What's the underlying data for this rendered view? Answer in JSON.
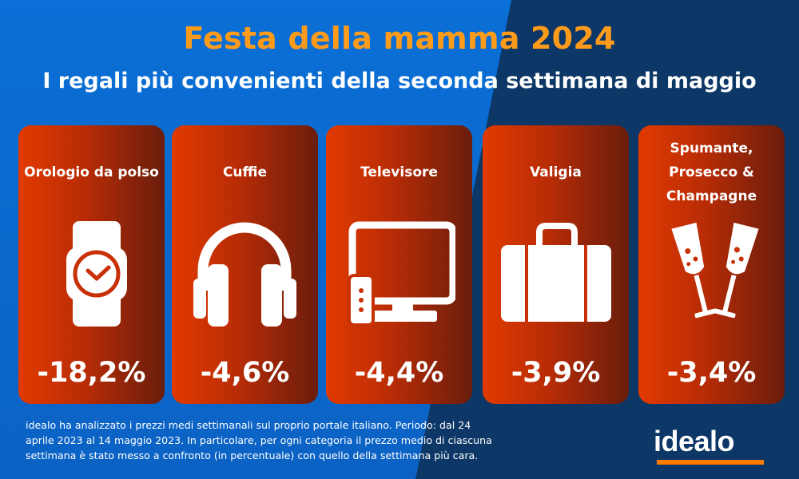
{
  "header": {
    "title": "Festa della mamma 2024",
    "subtitle": "I regali più convenienti della seconda settimana di maggio"
  },
  "cards": [
    {
      "label": "Orologio da polso",
      "icon": "wristwatch-icon",
      "value": "-18,2%"
    },
    {
      "label": "Cuffie",
      "icon": "headphones-icon",
      "value": "-4,6%"
    },
    {
      "label": "Televisore",
      "icon": "television-icon",
      "value": "-4,4%"
    },
    {
      "label": "Valigia",
      "icon": "suitcase-icon",
      "value": "-3,9%"
    },
    {
      "label_lines": [
        "Spumante,",
        "Prosecco &",
        "Champagne"
      ],
      "icon": "champagne-glasses-icon",
      "value": "-3,4%"
    }
  ],
  "footnote": {
    "lines": [
      "idealo ha analizzato i prezzi medi settimanali sul proprio portale italiano. Periodo: dal 24",
      "aprile 2023 al 14 maggio 2023. In particolare, per ogni categoria il prezzo medio di ciascuna",
      "settimana è stato messo a confronto (in percentuale) con quello della settimana più cara."
    ]
  },
  "brand": {
    "logo": "idealo",
    "title_color": "#ff9b1a",
    "accent_color": "#ff7a00",
    "bg_light": "#0b66cc",
    "bg_dark": "#0d3766"
  }
}
